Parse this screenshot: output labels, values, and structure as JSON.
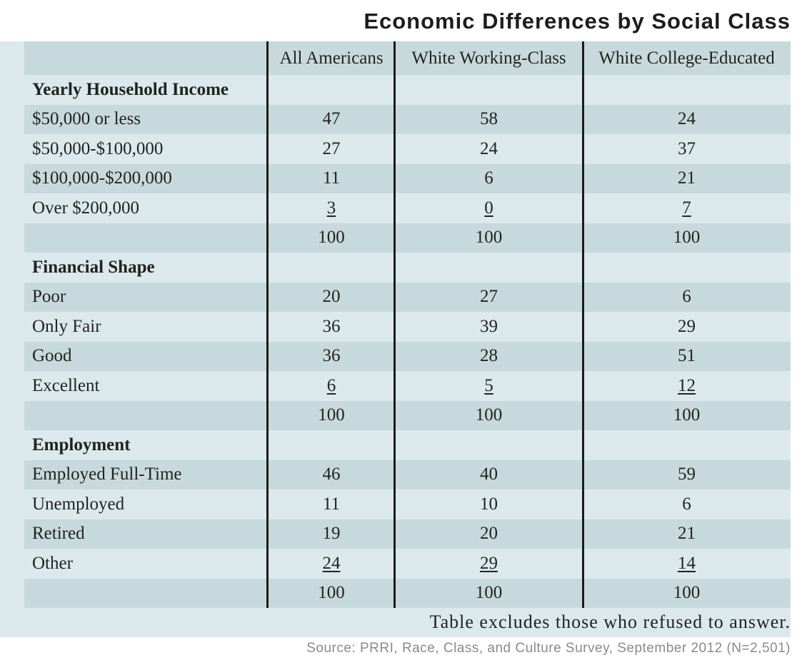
{
  "title": "Economic Differences by Social Class",
  "note": "Table excludes those who refused to answer.",
  "source": "Source: PRRI, Race, Class, and Culture Survey, September 2012 (N=2,501)",
  "colors": {
    "panel": "#dbe9ed",
    "stripe": "#c7d9dd",
    "rule": "#1b1b1b"
  },
  "chart_data": {
    "type": "table",
    "title": "Economic Differences by Social Class",
    "columns": [
      "",
      "All Americans",
      "White Working-Class",
      "White College-Educated"
    ],
    "rows": [
      {
        "kind": "section",
        "label": "Yearly Household Income"
      },
      {
        "kind": "data",
        "label": "$50,000 or less",
        "values": [
          "47",
          "58",
          "24"
        ]
      },
      {
        "kind": "data",
        "label": "$50,000-$100,000",
        "values": [
          "27",
          "24",
          "37"
        ]
      },
      {
        "kind": "data",
        "label": "$100,000-$200,000",
        "values": [
          "11",
          "6",
          "21"
        ]
      },
      {
        "kind": "data",
        "label": "Over $200,000",
        "values": [
          "3",
          "0",
          "7"
        ],
        "underline": true
      },
      {
        "kind": "total",
        "label": "",
        "values": [
          "100",
          "100",
          "100"
        ]
      },
      {
        "kind": "section",
        "label": "Financial Shape"
      },
      {
        "kind": "data",
        "label": "Poor",
        "values": [
          "20",
          "27",
          "6"
        ]
      },
      {
        "kind": "data",
        "label": "Only Fair",
        "values": [
          "36",
          "39",
          "29"
        ]
      },
      {
        "kind": "data",
        "label": "Good",
        "values": [
          "36",
          "28",
          "51"
        ]
      },
      {
        "kind": "data",
        "label": "Excellent",
        "values": [
          "6",
          "5",
          "12"
        ],
        "underline": true
      },
      {
        "kind": "total",
        "label": "",
        "values": [
          "100",
          "100",
          "100"
        ]
      },
      {
        "kind": "section",
        "label": "Employment"
      },
      {
        "kind": "data",
        "label": "Employed Full-Time",
        "values": [
          "46",
          "40",
          "59"
        ]
      },
      {
        "kind": "data",
        "label": "Unemployed",
        "values": [
          "11",
          "10",
          "6"
        ]
      },
      {
        "kind": "data",
        "label": "Retired",
        "values": [
          "19",
          "20",
          "21"
        ]
      },
      {
        "kind": "data",
        "label": "Other",
        "values": [
          "24",
          "29",
          "14"
        ],
        "underline": true
      },
      {
        "kind": "total",
        "label": "",
        "values": [
          "100",
          "100",
          "100"
        ]
      }
    ]
  }
}
